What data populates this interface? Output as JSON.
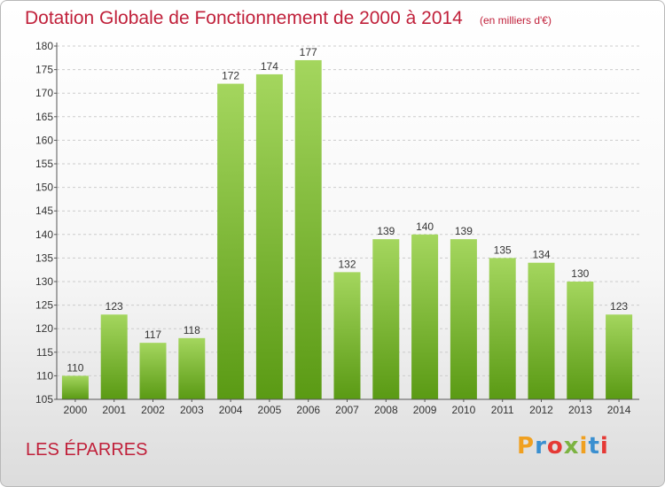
{
  "header": {
    "title": "Dotation Globale de Fonctionnement de 2000 à 2014",
    "unit": "(en milliers d'€)"
  },
  "footer": {
    "commune": "LES ÉPARRES",
    "logo_letters": [
      "P",
      "r",
      "o",
      "x",
      "i",
      "t",
      "i"
    ],
    "logo_colors": [
      "#f0a020",
      "#3a8fd0",
      "#e53935",
      "#7cb342",
      "#f0a020",
      "#3a8fd0",
      "#e53935"
    ]
  },
  "colors": {
    "title": "#c0203a",
    "bar_top": "#a4d65e",
    "bar_bottom": "#5a9a14",
    "grid": "#cccccc",
    "axis": "#555555"
  },
  "chart_data": {
    "type": "bar",
    "categories": [
      "2000",
      "2001",
      "2002",
      "2003",
      "2004",
      "2005",
      "2006",
      "2007",
      "2008",
      "2009",
      "2010",
      "2011",
      "2012",
      "2013",
      "2014"
    ],
    "values": [
      110,
      123,
      117,
      118,
      172,
      174,
      177,
      132,
      139,
      140,
      139,
      135,
      134,
      130,
      123
    ],
    "value_labels": [
      "110",
      "123",
      "117",
      "118",
      "172",
      "174",
      "177",
      "132",
      "139",
      "140",
      "139",
      "135",
      "134",
      "130",
      "123"
    ],
    "yticks": [
      "105",
      "110",
      "115",
      "120",
      "125",
      "130",
      "135",
      "140",
      "145",
      "150",
      "155",
      "160",
      "165",
      "170",
      "175",
      "180"
    ],
    "ylim": [
      105,
      180
    ],
    "grid": true
  }
}
